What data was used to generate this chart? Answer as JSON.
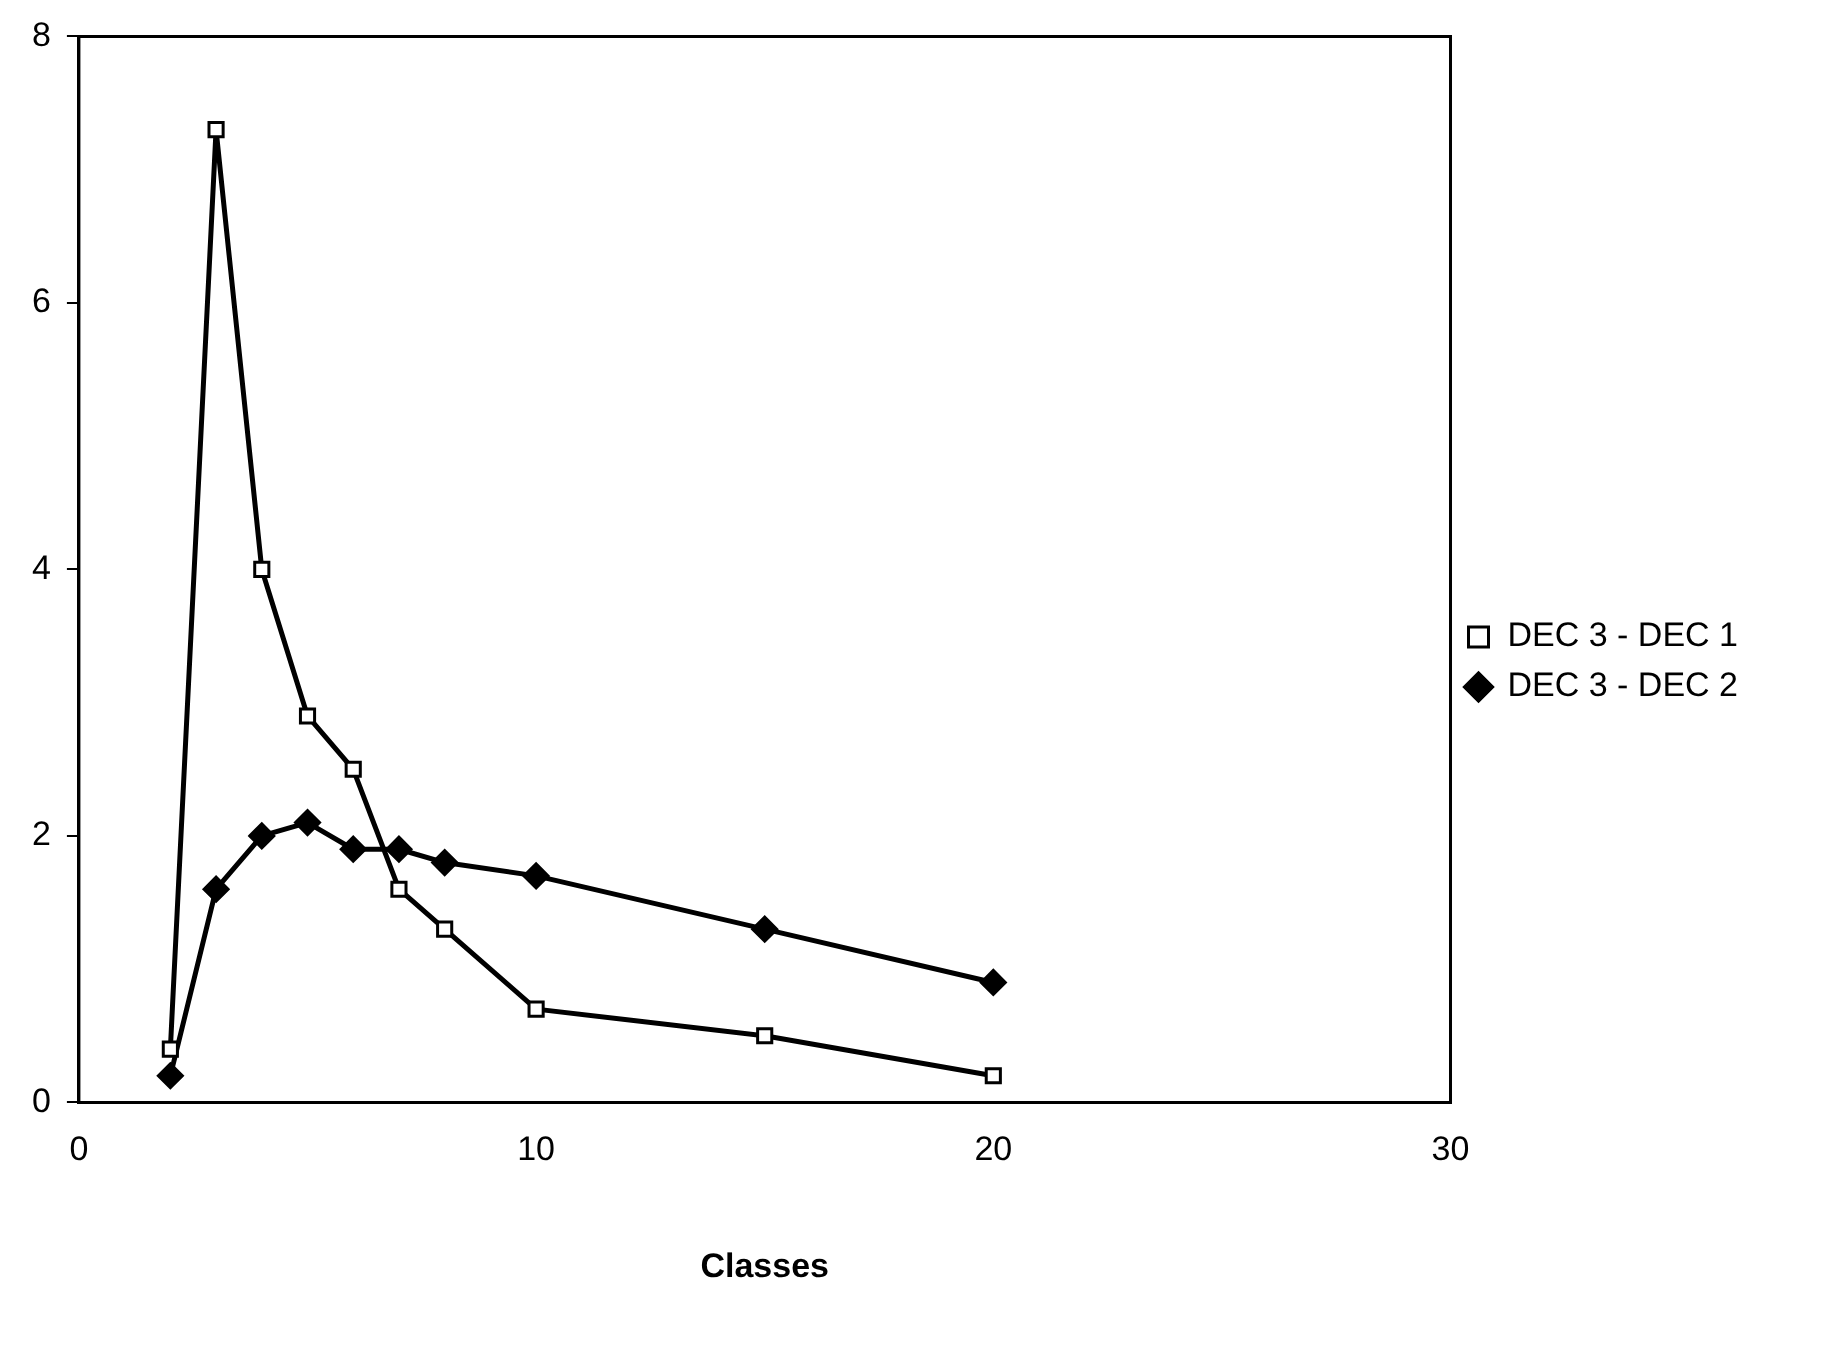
{
  "chart_data": {
    "type": "line",
    "xlabel": "Classes",
    "xlim": [
      0,
      30
    ],
    "xticks": [
      0,
      10,
      20,
      30
    ],
    "ylim": [
      0,
      8
    ],
    "yticks": [
      0,
      2,
      4,
      6,
      8
    ],
    "grid": false,
    "legend": "right",
    "line_style": "solid",
    "series": [
      {
        "name": "DEC 3 - DEC 1",
        "color": "#000000",
        "marker": "square",
        "x": [
          2,
          3,
          4,
          5,
          6,
          7,
          8,
          10,
          15,
          20
        ],
        "values": [
          0.4,
          7.3,
          4.0,
          2.9,
          2.5,
          1.6,
          1.3,
          0.7,
          0.5,
          0.2
        ]
      },
      {
        "name": "DEC 3 - DEC 2",
        "color": "#000000",
        "marker": "diamond",
        "x": [
          2,
          3,
          4,
          5,
          6,
          7,
          8,
          10,
          15,
          20
        ],
        "values": [
          0.2,
          1.6,
          2.0,
          2.1,
          1.9,
          1.9,
          1.8,
          1.7,
          1.3,
          0.9
        ]
      }
    ]
  }
}
